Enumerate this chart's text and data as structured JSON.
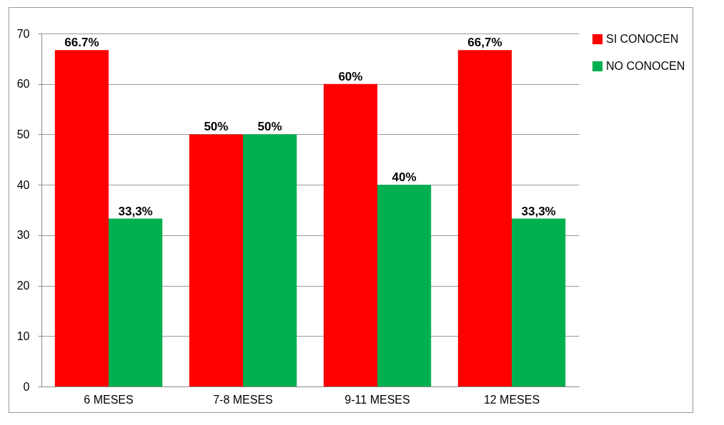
{
  "chart_data": {
    "type": "bar",
    "categories": [
      "6 MESES",
      "7-8 MESES",
      "9-11 MESES",
      "12 MESES"
    ],
    "series": [
      {
        "name": "SI CONOCEN",
        "color": "#ff0000",
        "values": [
          66.7,
          50,
          60,
          66.7
        ],
        "value_labels": [
          "66.7%",
          "50%",
          "60%",
          "66,7%"
        ]
      },
      {
        "name": "NO CONOCEN",
        "color": "#00b050",
        "values": [
          33.3,
          50,
          40,
          33.3
        ],
        "value_labels": [
          "33,3%",
          "50%",
          "40%",
          "33,3%"
        ]
      }
    ],
    "ylim": [
      0,
      70
    ],
    "yticks": [
      0,
      10,
      20,
      30,
      40,
      50,
      60,
      70
    ],
    "grid": "y",
    "legend": "right"
  }
}
